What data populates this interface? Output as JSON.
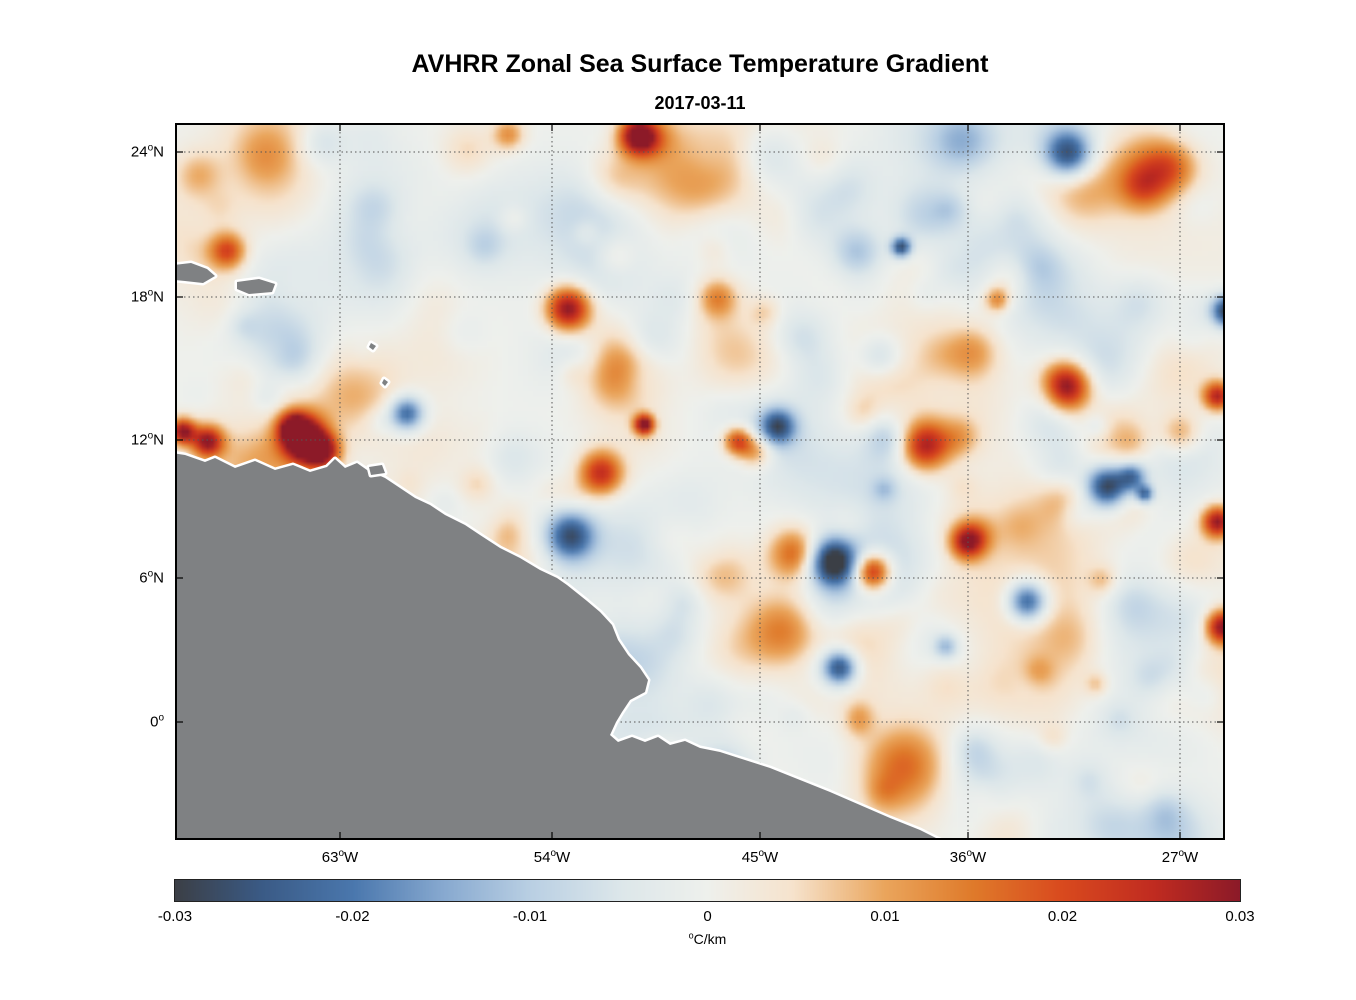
{
  "title": "AVHRR Zonal Sea Surface Temperature Gradient",
  "date": "2017-03-11",
  "axes": {
    "y_ticks": [
      {
        "num": "24",
        "deg": "o",
        "dir": "N",
        "frac": 0.04045
      },
      {
        "num": "18",
        "deg": "o",
        "dir": "N",
        "frac": 0.24268
      },
      {
        "num": "12",
        "deg": "o",
        "dir": "N",
        "frac": 0.44212
      },
      {
        "num": "6",
        "deg": "o",
        "dir": "N",
        "frac": 0.63459
      },
      {
        "num": "0",
        "deg": "o",
        "dir": "",
        "frac": 0.83543
      }
    ],
    "x_ticks": [
      {
        "num": "63",
        "deg": "o",
        "dir": "W",
        "frac": 0.15714
      },
      {
        "num": "54",
        "deg": "o",
        "dir": "W",
        "frac": 0.35905
      },
      {
        "num": "45",
        "deg": "o",
        "dir": "W",
        "frac": 0.55714
      },
      {
        "num": "36",
        "deg": "o",
        "dir": "W",
        "frac": 0.75524
      },
      {
        "num": "27",
        "deg": "o",
        "dir": "W",
        "frac": 0.95714
      }
    ]
  },
  "colorbar": {
    "ticks": [
      "-0.03",
      "-0.02",
      "-0.01",
      "0",
      "0.01",
      "0.02",
      "0.03"
    ],
    "unit_prefix": "o",
    "unit": "C/km",
    "min": -0.03,
    "max": 0.03
  },
  "land_color": "#7f8183",
  "coast_fringe_color": "#ffffff",
  "colormap": [
    [
      0.0,
      "#3b3f46"
    ],
    [
      0.08,
      "#3a5a85"
    ],
    [
      0.167,
      "#4a77ad"
    ],
    [
      0.25,
      "#86a8cf"
    ],
    [
      0.333,
      "#b9cfe3"
    ],
    [
      0.42,
      "#dde7ea"
    ],
    [
      0.5,
      "#eef0ec"
    ],
    [
      0.58,
      "#f6e3cd"
    ],
    [
      0.667,
      "#eaa55c"
    ],
    [
      0.75,
      "#df7a2a"
    ],
    [
      0.833,
      "#d94a1e"
    ],
    [
      0.92,
      "#c02b20"
    ],
    [
      1.0,
      "#8c1a28"
    ]
  ],
  "chart_data": {
    "type": "heatmap",
    "title": "AVHRR Zonal Sea Surface Temperature Gradient",
    "subtitle": "2017-03-11",
    "field": "zonal sea surface temperature gradient (dT/dx) from AVHRR satellite data; diverging blue-white-orange/red field over ocean, gray land mask with white coastal fringe (northern South America and Caribbean islands)",
    "x_tick_labels": [
      "63°W",
      "54°W",
      "45°W",
      "36°W",
      "27°W"
    ],
    "y_tick_labels": [
      "24°N",
      "18°N",
      "12°N",
      "6°N",
      "0°"
    ],
    "lon_range_approx": [
      "70°W",
      "25°W"
    ],
    "lat_range_approx": [
      "5°S",
      "25°N"
    ],
    "grid": "dotted graticule every 6° latitude and 9° longitude",
    "colorbar": {
      "orientation": "horizontal",
      "label": "°C/km",
      "min": -0.03,
      "max": 0.03,
      "tick_values": [
        -0.03,
        -0.02,
        -0.01,
        0,
        0.01,
        0.02,
        0.03
      ],
      "palette": "dark slate-blue → blue → light blue → white → peach → orange → red → dark red"
    }
  }
}
